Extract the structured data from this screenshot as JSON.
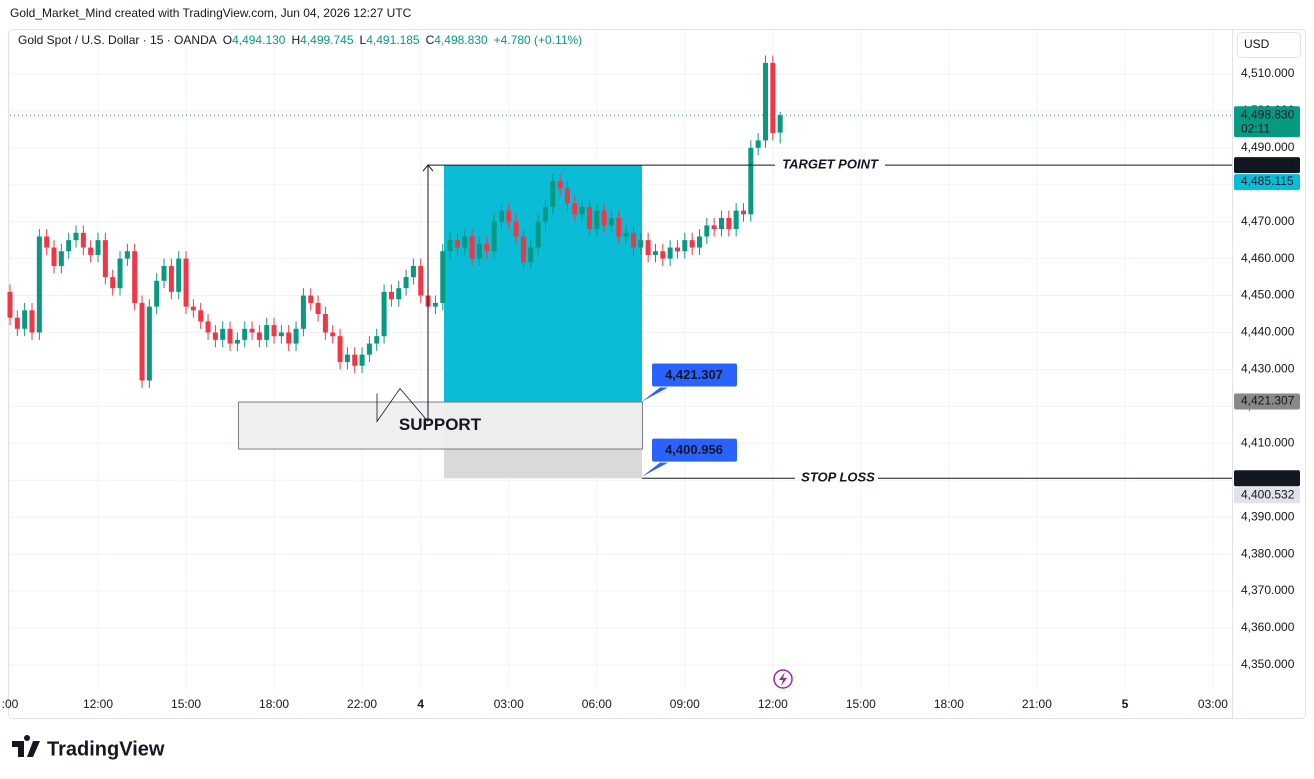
{
  "header": "Gold_Market_Mind created with TradingView.com, Jun 04, 2026 12:27 UTC",
  "chart_data": {
    "type": "candlestick",
    "title": "Gold Spot / U.S. Dollar · 15 · OANDA",
    "ohlc_legend": [
      {
        "key": "O",
        "value": "4,494.130"
      },
      {
        "key": "H",
        "value": "4,499.745"
      },
      {
        "key": "L",
        "value": "4,491.185"
      },
      {
        "key": "C",
        "value": "4,498.830"
      }
    ],
    "change": "+4.780 (+0.11%)",
    "currency": "USD",
    "up_color": "#089981",
    "down_color": "#f23645",
    "open": [
      4451,
      4444,
      4441,
      4446,
      4440,
      4466,
      4463,
      4458,
      4462,
      4465,
      4467,
      4463,
      4461,
      4465,
      4455,
      4452,
      4460,
      4462,
      4448,
      4427,
      4447,
      4454,
      4458,
      4451,
      4460,
      4447,
      4446,
      4443,
      4440,
      4438,
      4441,
      4437,
      4438,
      4441,
      4440,
      4438,
      4442,
      4439,
      4440,
      4437,
      4441,
      4450,
      4448,
      4445,
      4440,
      4439,
      4432,
      4434,
      4431,
      4434,
      4437,
      4439,
      4451,
      4449,
      4452,
      4455,
      4458,
      4450,
      4447,
      4448,
      4462,
      4465,
      4463,
      4466,
      4460,
      4464,
      4462,
      4470,
      4473,
      4470,
      4466,
      4459,
      4463,
      4470,
      4474,
      4481,
      4479,
      4475,
      4472,
      4474,
      4468,
      4473,
      4469,
      4471,
      4466,
      4467,
      4463,
      4465,
      4461,
      4462,
      4460,
      4463,
      4462,
      4465,
      4463,
      4466,
      4469,
      4468,
      4471,
      4468,
      4473,
      4472,
      4490,
      4492,
      4513,
      4494.13
    ],
    "high": [
      4453,
      4446,
      4448,
      4448,
      4468,
      4468,
      4465,
      4464,
      4467,
      4469,
      4469,
      4465,
      4467,
      4467,
      4457,
      4462,
      4464,
      4464,
      4450,
      4449,
      4456,
      4460,
      4460,
      4462,
      4462,
      4449,
      4448,
      4445,
      4442,
      4443,
      4443,
      4440,
      4443,
      4443,
      4442,
      4444,
      4444,
      4442,
      4442,
      4443,
      4452,
      4452,
      4450,
      4447,
      4442,
      4441,
      4436,
      4436,
      4436,
      4439,
      4441,
      4453,
      4453,
      4454,
      4457,
      4460,
      4460,
      4452,
      4450,
      4464,
      4467,
      4467,
      4468,
      4468,
      4466,
      4466,
      4472,
      4475,
      4475,
      4472,
      4468,
      4465,
      4472,
      4476,
      4483,
      4483,
      4481,
      4477,
      4476,
      4476,
      4475,
      4475,
      4473,
      4473,
      4469,
      4469,
      4467,
      4467,
      4464,
      4464,
      4465,
      4465,
      4467,
      4467,
      4468,
      4471,
      4471,
      4473,
      4473,
      4475,
      4475,
      4492,
      4494,
      4515,
      4515,
      4499.745
    ],
    "low": [
      4442,
      4439,
      4439,
      4438,
      4438,
      4461,
      4456,
      4456,
      4460,
      4463,
      4461,
      4459,
      4459,
      4453,
      4450,
      4450,
      4458,
      4446,
      4425,
      4425,
      4445,
      4452,
      4449,
      4449,
      4445,
      4444,
      4441,
      4438,
      4436,
      4436,
      4435,
      4435,
      4436,
      4438,
      4436,
      4436,
      4437,
      4437,
      4435,
      4435,
      4439,
      4446,
      4443,
      4438,
      4437,
      4430,
      4430,
      4429,
      4429,
      4432,
      4435,
      4437,
      4447,
      4447,
      4450,
      4453,
      4448,
      4445,
      4445,
      4446,
      4460,
      4461,
      4461,
      4458,
      4458,
      4460,
      4460,
      4468,
      4468,
      4464,
      4457,
      4457,
      4461,
      4468,
      4472,
      4477,
      4473,
      4470,
      4470,
      4466,
      4466,
      4467,
      4467,
      4464,
      4464,
      4461,
      4461,
      4459,
      4459,
      4458,
      4458,
      4460,
      4460,
      4461,
      4461,
      4464,
      4466,
      4466,
      4466,
      4466,
      4470,
      4470,
      4488,
      4490,
      4492,
      4491.185
    ],
    "close": [
      4444,
      4441,
      4446,
      4440,
      4466,
      4463,
      4458,
      4462,
      4465,
      4467,
      4463,
      4461,
      4465,
      4455,
      4452,
      4460,
      4462,
      4448,
      4427,
      4447,
      4454,
      4458,
      4451,
      4460,
      4447,
      4446,
      4443,
      4440,
      4438,
      4441,
      4437,
      4438,
      4441,
      4440,
      4438,
      4442,
      4439,
      4440,
      4437,
      4441,
      4450,
      4448,
      4445,
      4440,
      4439,
      4432,
      4434,
      4431,
      4434,
      4437,
      4439,
      4451,
      4449,
      4452,
      4455,
      4458,
      4450,
      4447,
      4448,
      4462,
      4465,
      4463,
      4466,
      4460,
      4464,
      4462,
      4470,
      4473,
      4470,
      4466,
      4459,
      4463,
      4470,
      4474,
      4481,
      4479,
      4475,
      4472,
      4474,
      4468,
      4473,
      4469,
      4471,
      4466,
      4467,
      4463,
      4465,
      4461,
      4462,
      4460,
      4463,
      4462,
      4465,
      4463,
      4466,
      4469,
      4468,
      4471,
      4468,
      4473,
      4472,
      4490,
      4492,
      4513,
      4494,
      4498.83
    ],
    "xlim": [
      0,
      166.6
    ],
    "xticks": [
      {
        "value": 0,
        "label": ":00"
      },
      {
        "value": 12,
        "label": "12:00"
      },
      {
        "value": 24,
        "label": "15:00"
      },
      {
        "value": 36,
        "label": "18:00"
      },
      {
        "value": 48,
        "label": "22:00"
      },
      {
        "value": 56,
        "label": "4"
      },
      {
        "value": 68,
        "label": "03:00"
      },
      {
        "value": 80,
        "label": "06:00"
      },
      {
        "value": 92,
        "label": "09:00"
      },
      {
        "value": 104,
        "label": "12:00"
      },
      {
        "value": 116,
        "label": "15:00"
      },
      {
        "value": 128,
        "label": "18:00"
      },
      {
        "value": 140,
        "label": "21:00"
      },
      {
        "value": 152,
        "label": "5"
      },
      {
        "value": 164,
        "label": "03:00"
      }
    ],
    "ylim": [
      4343.2,
      4521.9
    ],
    "yticks": [
      {
        "value": 4350,
        "label": "4,350.000"
      },
      {
        "value": 4360,
        "label": "4,360.000"
      },
      {
        "value": 4370,
        "label": "4,370.000"
      },
      {
        "value": 4380,
        "label": "4,380.000"
      },
      {
        "value": 4390,
        "label": "4,390.000"
      },
      {
        "value": 4400,
        "label": "4,400.000"
      },
      {
        "value": 4410,
        "label": "4,410.000"
      },
      {
        "value": 4420,
        "label": "4,420.000"
      },
      {
        "value": 4430,
        "label": "4,430.000"
      },
      {
        "value": 4440,
        "label": "4,440.000"
      },
      {
        "value": 4450,
        "label": "4,450.000"
      },
      {
        "value": 4460,
        "label": "4,460.000"
      },
      {
        "value": 4470,
        "label": "4,470.000"
      },
      {
        "value": 4480,
        "label": "4,480.000"
      },
      {
        "value": 4490,
        "label": "4,490.000"
      },
      {
        "value": 4500,
        "label": "4,500.000"
      },
      {
        "value": 4510,
        "label": "4,510.000"
      }
    ],
    "grid": true,
    "last_price": {
      "value": 4498.83,
      "label": "4,498.830",
      "countdown": "02:11"
    },
    "price_tags": [
      {
        "value": 4485.327,
        "label": "4,485.327",
        "color": "#131722"
      },
      {
        "value": 4485.115,
        "label": "4,485.115",
        "color": "#0bbcd6"
      },
      {
        "value": 4421.307,
        "label": "4,421.307",
        "color": "#888888"
      },
      {
        "value": 4400.532,
        "label": "4,400.532",
        "color": "#131722"
      },
      {
        "value": 4400.532,
        "label": "4,400.532",
        "color": "#e0e3eb"
      }
    ],
    "annotations": {
      "target": {
        "value": 4485.327,
        "label": "TARGET POINT"
      },
      "stop": {
        "value": 4400.532,
        "label": "STOP LOSS"
      },
      "support": "SUPPORT",
      "entry_callout": {
        "value": 4421.307,
        "label": "4,421.307"
      },
      "stop_callout": {
        "value": 4400.956,
        "label": "4,400.956"
      }
    }
  },
  "footer": "TradingView"
}
